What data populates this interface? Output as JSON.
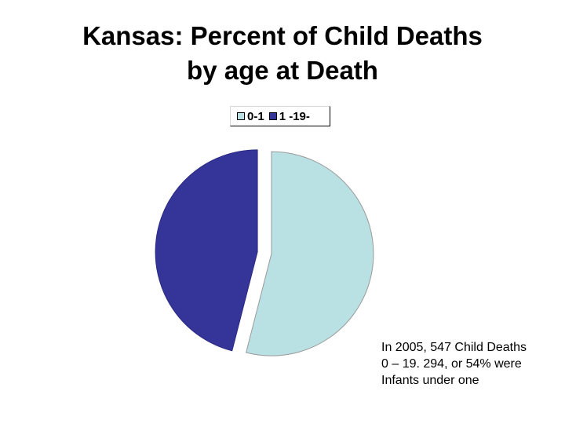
{
  "chart_data": {
    "type": "pie",
    "title_lines": [
      "Kansas:  Percent of Child Deaths",
      "by age at Death"
    ],
    "categories": [
      "0-1",
      "1 -19-"
    ],
    "values": [
      54,
      46
    ],
    "colors": [
      "#b9e0e3",
      "#343499"
    ],
    "exploded": true,
    "legend_position": "top"
  },
  "note": {
    "lines": [
      "In 2005, 547 Child Deaths",
      "0 – 19.  294, or 54% were",
      "Infants under one"
    ]
  }
}
